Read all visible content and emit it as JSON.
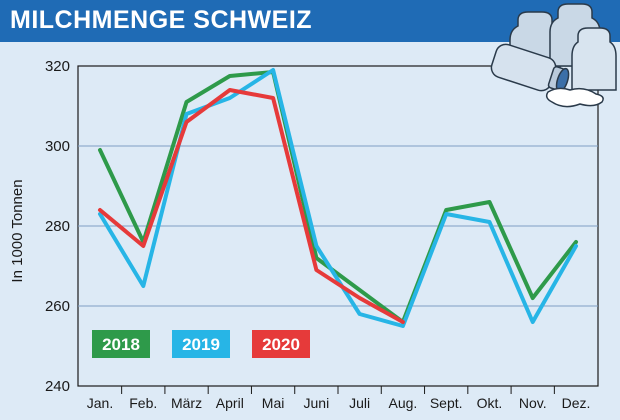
{
  "header": {
    "title": "MILCHMENGE SCHWEIZ",
    "background_color": "#1f6bb5"
  },
  "illustration": {
    "icon": "milk-cans-icon"
  },
  "chart_data": {
    "type": "line",
    "title": "MILCHMENGE SCHWEIZ",
    "xlabel": "",
    "ylabel": "In 1000 Tonnen",
    "ylim": [
      240,
      320
    ],
    "yticks": [
      240,
      260,
      280,
      300,
      320
    ],
    "grid": true,
    "legend_position": "bottom-left",
    "categories": [
      "Jan.",
      "Feb.",
      "März",
      "April",
      "Mai",
      "Juni",
      "Juli",
      "Aug.",
      "Sept.",
      "Okt.",
      "Nov.",
      "Dez."
    ],
    "series": [
      {
        "name": "2018",
        "color": "#2e9a4a",
        "values": [
          299,
          276,
          311,
          317.5,
          318.5,
          272,
          264,
          256,
          284,
          286,
          262,
          276
        ]
      },
      {
        "name": "2019",
        "color": "#27b5e6",
        "values": [
          283,
          265,
          308,
          312,
          319,
          275,
          258,
          255,
          283,
          281,
          256,
          275
        ]
      },
      {
        "name": "2020",
        "color": "#e63a3a",
        "values": [
          284,
          275,
          306,
          314,
          312,
          269,
          262,
          256,
          null,
          null,
          null,
          null
        ]
      }
    ]
  }
}
